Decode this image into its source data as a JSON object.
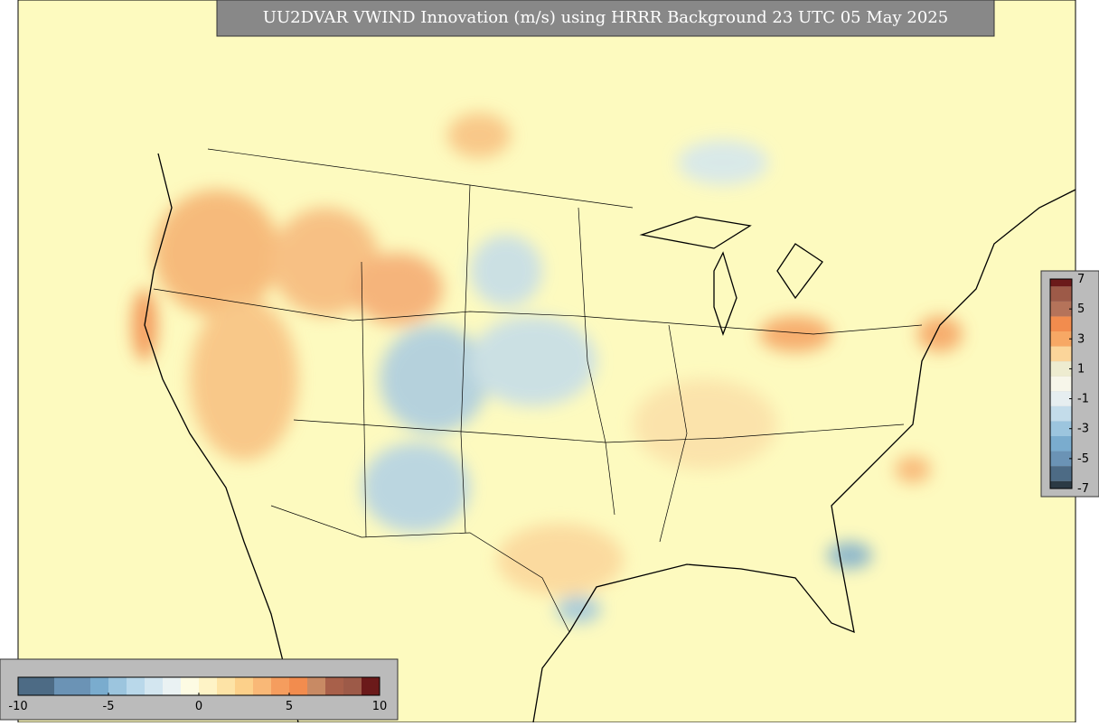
{
  "title": "UU2DVAR VWIND Innovation (m/s) using HRRR Background 23 UTC 05 May 2025",
  "colorbar_horizontal": {
    "range": [
      -10,
      10
    ],
    "ticks": [
      -10,
      -5,
      0,
      5,
      10
    ],
    "levels": [
      -10,
      -8,
      -6,
      -5,
      -4,
      -3,
      -2,
      -1,
      0,
      1,
      2,
      3,
      4,
      5,
      6,
      7,
      8,
      9,
      10
    ],
    "colors": [
      "#4d6b85",
      "#6b93b5",
      "#7aacce",
      "#9cc5de",
      "#b9d8ea",
      "#d3e6f0",
      "#eaf2f3",
      "#fdfbe3",
      "#fef3c6",
      "#fde3a6",
      "#fcd08a",
      "#f9b877",
      "#f59d5e",
      "#f28c4e",
      "#c88a64",
      "#a8604a",
      "#9d5a48",
      "#6b1a1a"
    ]
  },
  "colorbar_vertical": {
    "range": [
      -7,
      7
    ],
    "ticks": [
      7,
      5,
      3,
      1,
      -1,
      -3,
      -5,
      -7
    ],
    "levels": [
      -7,
      -6.5,
      -5.5,
      -4.5,
      -3.5,
      -2.5,
      -1.5,
      -0.5,
      0.5,
      1.5,
      2.5,
      3.5,
      4.5,
      5.5,
      6.5,
      7
    ],
    "colors": [
      "#2c3a44",
      "#4d6b85",
      "#6b93b5",
      "#7aacce",
      "#9cc5de",
      "#c3dcea",
      "#e6eef0",
      "#f7f6ea",
      "#eeecd0",
      "#fbd59a",
      "#f7a865",
      "#f28c4e",
      "#b5735a",
      "#9d5a48",
      "#6b1a1a"
    ]
  }
}
